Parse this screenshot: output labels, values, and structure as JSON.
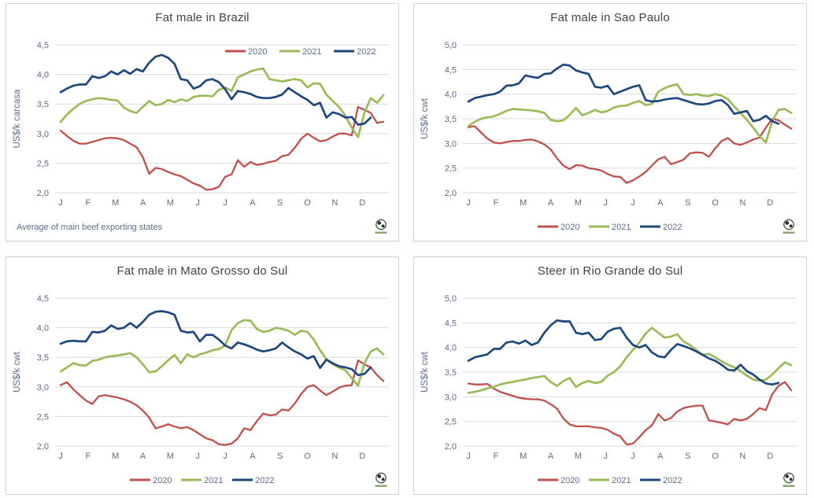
{
  "page": {
    "background": "#ffffff"
  },
  "colors": {
    "red": "#C0504D",
    "green": "#9BBB59",
    "navy": "#1F497D",
    "grid": "#D9D9D9",
    "axis_text": "#5D6D89",
    "title_text": "#3E424C",
    "panel_border": "#CFD2D6"
  },
  "months": [
    "J",
    "F",
    "M",
    "A",
    "M",
    "J",
    "J",
    "A",
    "S",
    "O",
    "N",
    "D"
  ],
  "legend_labels": [
    "2020",
    "2021",
    "2022"
  ],
  "logo_name": "globe-logo",
  "chart_data": [
    {
      "type": "line",
      "title": "Fat male in Brazil",
      "ylabel": "US$/k carcasa",
      "ylim": [
        2.0,
        4.5
      ],
      "ytick_step": 0.5,
      "grid": "horizontal",
      "legend_position": "top-right",
      "note": "Average  of main beef exporting states",
      "x_categories": [
        "J",
        "F",
        "M",
        "A",
        "M",
        "J",
        "J",
        "A",
        "S",
        "O",
        "N",
        "D"
      ],
      "series": [
        {
          "name": "2020",
          "color": "#C0504D",
          "values": [
            3.05,
            2.96,
            2.88,
            2.83,
            2.83,
            2.86,
            2.89,
            2.92,
            2.93,
            2.92,
            2.89,
            2.83,
            2.77,
            2.6,
            2.32,
            2.42,
            2.4,
            2.35,
            2.31,
            2.28,
            2.22,
            2.16,
            2.12,
            2.05,
            2.06,
            2.1,
            2.27,
            2.31,
            2.55,
            2.44,
            2.52,
            2.47,
            2.49,
            2.52,
            2.54,
            2.62,
            2.64,
            2.76,
            2.91,
            3.0,
            2.93,
            2.87,
            2.89,
            2.95,
            3.0,
            3.0,
            2.97,
            3.45,
            3.4,
            3.35,
            3.18,
            3.2
          ]
        },
        {
          "name": "2021",
          "color": "#9BBB59",
          "values": [
            3.2,
            3.32,
            3.42,
            3.5,
            3.55,
            3.58,
            3.6,
            3.59,
            3.57,
            3.56,
            3.44,
            3.38,
            3.35,
            3.45,
            3.55,
            3.48,
            3.5,
            3.57,
            3.53,
            3.58,
            3.55,
            3.62,
            3.64,
            3.64,
            3.63,
            3.74,
            3.78,
            3.72,
            3.95,
            4.0,
            4.05,
            4.08,
            4.1,
            3.92,
            3.9,
            3.88,
            3.9,
            3.92,
            3.9,
            3.78,
            3.85,
            3.84,
            3.66,
            3.55,
            3.45,
            3.3,
            3.1,
            2.94,
            3.35,
            3.6,
            3.52,
            3.65
          ]
        },
        {
          "name": "2022",
          "color": "#1F497D",
          "values": [
            3.7,
            3.76,
            3.81,
            3.83,
            3.83,
            3.97,
            3.94,
            3.97,
            4.05,
            4.0,
            4.07,
            4.01,
            4.09,
            4.05,
            4.2,
            4.3,
            4.33,
            4.28,
            4.18,
            3.92,
            3.9,
            3.76,
            3.8,
            3.9,
            3.92,
            3.87,
            3.75,
            3.58,
            3.72,
            3.7,
            3.67,
            3.62,
            3.6,
            3.6,
            3.62,
            3.66,
            3.77,
            3.7,
            3.63,
            3.57,
            3.48,
            3.52,
            3.27,
            3.36,
            3.33,
            3.27,
            3.28,
            3.15,
            3.17,
            3.27
          ]
        }
      ]
    },
    {
      "type": "line",
      "title": "Fat male in Sao Paulo",
      "ylabel": "US$/k cwt",
      "ylim": [
        2.0,
        5.0
      ],
      "ytick_step": 0.5,
      "grid": "horizontal",
      "legend_position": "bottom",
      "note": "",
      "x_categories": [
        "J",
        "F",
        "M",
        "A",
        "M",
        "J",
        "J",
        "A",
        "S",
        "O",
        "N",
        "D"
      ],
      "series": [
        {
          "name": "2020",
          "color": "#C0504D",
          "values": [
            3.33,
            3.35,
            3.22,
            3.1,
            3.02,
            3.0,
            3.03,
            3.05,
            3.05,
            3.07,
            3.08,
            3.04,
            2.98,
            2.88,
            2.7,
            2.55,
            2.48,
            2.56,
            2.55,
            2.5,
            2.48,
            2.45,
            2.38,
            2.33,
            2.32,
            2.2,
            2.25,
            2.33,
            2.42,
            2.55,
            2.68,
            2.73,
            2.58,
            2.62,
            2.67,
            2.8,
            2.82,
            2.81,
            2.73,
            2.9,
            3.05,
            3.11,
            3.0,
            2.97,
            3.02,
            3.08,
            3.12,
            3.32,
            3.5,
            3.47,
            3.38,
            3.3
          ]
        },
        {
          "name": "2021",
          "color": "#9BBB59",
          "values": [
            3.35,
            3.44,
            3.5,
            3.53,
            3.55,
            3.6,
            3.66,
            3.7,
            3.69,
            3.68,
            3.67,
            3.65,
            3.62,
            3.48,
            3.45,
            3.47,
            3.58,
            3.72,
            3.57,
            3.62,
            3.68,
            3.63,
            3.66,
            3.73,
            3.76,
            3.77,
            3.82,
            3.86,
            3.78,
            3.8,
            4.05,
            4.12,
            4.17,
            4.2,
            4.0,
            3.98,
            4.0,
            3.97,
            3.96,
            4.0,
            3.97,
            3.9,
            3.75,
            3.62,
            3.48,
            3.32,
            3.15,
            3.02,
            3.45,
            3.68,
            3.7,
            3.62
          ]
        },
        {
          "name": "2022",
          "color": "#1F497D",
          "values": [
            3.85,
            3.92,
            3.95,
            3.98,
            4.0,
            4.05,
            4.17,
            4.18,
            4.22,
            4.38,
            4.35,
            4.33,
            4.41,
            4.42,
            4.52,
            4.6,
            4.58,
            4.48,
            4.44,
            4.41,
            4.15,
            4.13,
            4.17,
            4.0,
            4.05,
            4.1,
            4.15,
            4.18,
            3.88,
            3.85,
            3.86,
            3.89,
            3.91,
            3.92,
            3.88,
            3.84,
            3.8,
            3.79,
            3.81,
            3.86,
            3.88,
            3.78,
            3.6,
            3.63,
            3.66,
            3.45,
            3.48,
            3.56,
            3.45,
            3.4
          ]
        }
      ]
    },
    {
      "type": "line",
      "title": "Fat male in Mato Grosso do Sul",
      "ylabel": "US$/k cwt",
      "ylim": [
        2.0,
        4.5
      ],
      "ytick_step": 0.5,
      "grid": "horizontal",
      "legend_position": "bottom",
      "note": "",
      "x_categories": [
        "J",
        "F",
        "M",
        "A",
        "M",
        "J",
        "J",
        "A",
        "S",
        "O",
        "N",
        "D"
      ],
      "series": [
        {
          "name": "2020",
          "color": "#C0504D",
          "values": [
            3.03,
            3.08,
            2.96,
            2.86,
            2.77,
            2.71,
            2.84,
            2.86,
            2.84,
            2.82,
            2.79,
            2.75,
            2.69,
            2.6,
            2.48,
            2.3,
            2.33,
            2.37,
            2.33,
            2.3,
            2.32,
            2.27,
            2.2,
            2.13,
            2.1,
            2.03,
            2.02,
            2.04,
            2.13,
            2.3,
            2.27,
            2.42,
            2.55,
            2.52,
            2.53,
            2.62,
            2.6,
            2.72,
            2.88,
            3.0,
            3.03,
            2.94,
            2.86,
            2.92,
            2.99,
            3.02,
            3.03,
            3.45,
            3.38,
            3.33,
            3.2,
            3.1
          ]
        },
        {
          "name": "2021",
          "color": "#9BBB59",
          "values": [
            3.26,
            3.33,
            3.4,
            3.37,
            3.36,
            3.44,
            3.46,
            3.5,
            3.52,
            3.53,
            3.55,
            3.57,
            3.5,
            3.38,
            3.25,
            3.26,
            3.35,
            3.45,
            3.54,
            3.4,
            3.55,
            3.5,
            3.55,
            3.58,
            3.62,
            3.64,
            3.7,
            3.96,
            4.08,
            4.13,
            4.12,
            3.98,
            3.93,
            3.95,
            4.0,
            3.98,
            3.95,
            3.88,
            3.95,
            3.93,
            3.8,
            3.62,
            3.47,
            3.38,
            3.33,
            3.28,
            3.15,
            3.02,
            3.4,
            3.6,
            3.65,
            3.55
          ]
        },
        {
          "name": "2022",
          "color": "#1F497D",
          "values": [
            3.73,
            3.77,
            3.78,
            3.77,
            3.77,
            3.93,
            3.92,
            3.95,
            4.04,
            3.98,
            4.0,
            4.08,
            4.0,
            4.1,
            4.22,
            4.27,
            4.28,
            4.26,
            4.22,
            3.95,
            3.92,
            3.93,
            3.77,
            3.88,
            3.88,
            3.8,
            3.7,
            3.65,
            3.75,
            3.72,
            3.68,
            3.63,
            3.6,
            3.62,
            3.65,
            3.75,
            3.67,
            3.6,
            3.55,
            3.48,
            3.52,
            3.32,
            3.46,
            3.4,
            3.35,
            3.33,
            3.3,
            3.2,
            3.22,
            3.33
          ]
        }
      ]
    },
    {
      "type": "line",
      "title": "Steer  in Rio Grande do Sul",
      "ylabel": "US$/k cwt",
      "ylim": [
        2.0,
        5.0
      ],
      "ytick_step": 0.5,
      "grid": "horizontal",
      "legend_position": "bottom",
      "note": "",
      "x_categories": [
        "J",
        "F",
        "M",
        "A",
        "M",
        "J",
        "J",
        "A",
        "S",
        "O",
        "N",
        "D"
      ],
      "series": [
        {
          "name": "2020",
          "color": "#C0504D",
          "values": [
            3.27,
            3.25,
            3.25,
            3.26,
            3.17,
            3.1,
            3.06,
            3.02,
            2.98,
            2.96,
            2.95,
            2.95,
            2.92,
            2.85,
            2.76,
            2.56,
            2.44,
            2.4,
            2.4,
            2.4,
            2.38,
            2.37,
            2.33,
            2.25,
            2.2,
            2.03,
            2.05,
            2.18,
            2.32,
            2.42,
            2.65,
            2.52,
            2.57,
            2.7,
            2.77,
            2.8,
            2.82,
            2.82,
            2.52,
            2.5,
            2.47,
            2.44,
            2.55,
            2.52,
            2.55,
            2.65,
            2.77,
            2.73,
            3.05,
            3.22,
            3.3,
            3.13
          ]
        },
        {
          "name": "2021",
          "color": "#9BBB59",
          "values": [
            3.08,
            3.1,
            3.13,
            3.17,
            3.2,
            3.25,
            3.28,
            3.3,
            3.33,
            3.35,
            3.38,
            3.4,
            3.42,
            3.3,
            3.22,
            3.32,
            3.38,
            3.2,
            3.28,
            3.32,
            3.28,
            3.3,
            3.43,
            3.5,
            3.62,
            3.8,
            3.95,
            4.1,
            4.28,
            4.4,
            4.3,
            4.2,
            4.22,
            4.27,
            4.12,
            4.05,
            3.95,
            3.85,
            3.87,
            3.8,
            3.72,
            3.65,
            3.6,
            3.52,
            3.43,
            3.35,
            3.33,
            3.35,
            3.45,
            3.58,
            3.7,
            3.64
          ]
        },
        {
          "name": "2022",
          "color": "#1F497D",
          "values": [
            3.73,
            3.8,
            3.83,
            3.86,
            3.97,
            3.97,
            4.1,
            4.12,
            4.08,
            4.14,
            4.05,
            4.1,
            4.3,
            4.45,
            4.55,
            4.53,
            4.53,
            4.3,
            4.27,
            4.3,
            4.15,
            4.17,
            4.32,
            4.38,
            4.4,
            4.2,
            4.05,
            4.0,
            4.05,
            3.9,
            3.82,
            3.8,
            3.95,
            4.07,
            4.03,
            3.98,
            3.92,
            3.85,
            3.78,
            3.73,
            3.65,
            3.55,
            3.53,
            3.65,
            3.52,
            3.45,
            3.35,
            3.27,
            3.25,
            3.28
          ]
        }
      ]
    }
  ]
}
